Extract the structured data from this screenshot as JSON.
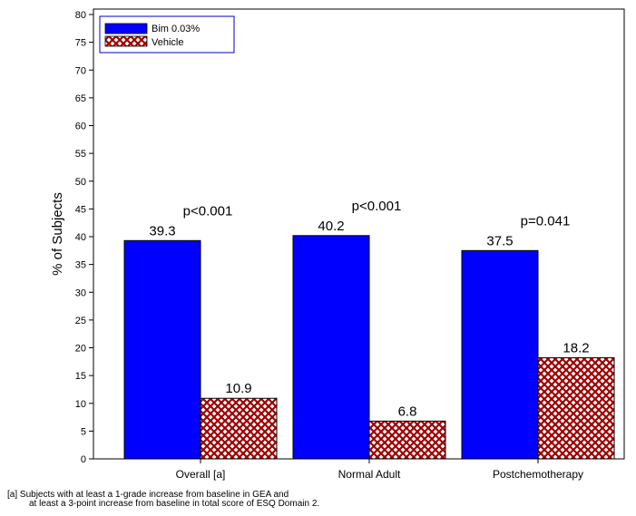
{
  "chart_data": {
    "type": "bar",
    "categories": [
      "Overall [a]",
      "Normal Adult",
      "Postchemotherapy"
    ],
    "series": [
      {
        "name": "Bim 0.03%",
        "values": [
          39.3,
          40.2,
          37.5
        ],
        "color": "#0000ff",
        "pattern": "solid"
      },
      {
        "name": "Vehicle",
        "values": [
          10.9,
          6.8,
          18.2
        ],
        "color": "#a00000",
        "pattern": "crosshatch"
      }
    ],
    "value_labels": [
      [
        "39.3",
        "40.2",
        "37.5"
      ],
      [
        "10.9",
        "6.8",
        "18.2"
      ]
    ],
    "annotations": [
      "p<0.001",
      "p<0.001",
      "p=0.041"
    ],
    "ylabel": "% of Subjects",
    "ylim": [
      0,
      80
    ],
    "yticks": [
      0,
      5,
      10,
      15,
      20,
      25,
      30,
      35,
      40,
      45,
      50,
      55,
      60,
      65,
      70,
      75,
      80
    ],
    "legend_position": "top-left",
    "grid": false
  },
  "footnote": {
    "line1": "[a] Subjects with at least a 1-grade increase from baseline in GEA and",
    "line2": "at least a 3-point increase from baseline in total score of ESQ Domain 2."
  }
}
